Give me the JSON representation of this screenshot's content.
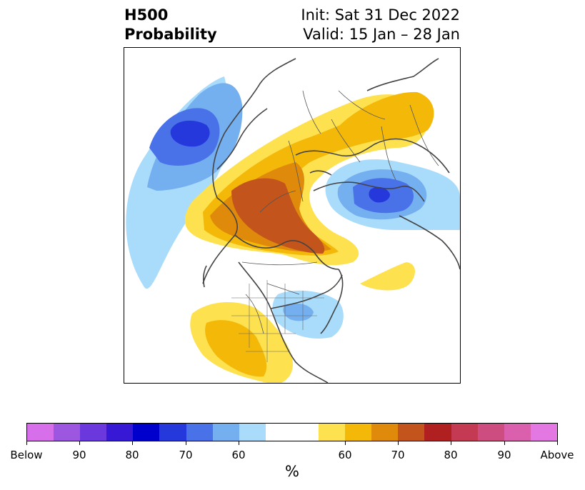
{
  "header": {
    "title_line1": "H500",
    "title_line2": "Probability",
    "init_text": "Init: Sat 31 Dec 2022",
    "valid_text": "Valid: 15 Jan – 28 Jan"
  },
  "map": {
    "icons": [
      "coastline-outline",
      "country-borders",
      "state-borders"
    ],
    "anomaly_regions": [
      {
        "name": "north-pacific-low",
        "category": "below",
        "max_level": 75
      },
      {
        "name": "arctic-canada-high",
        "category": "above",
        "max_level": 75
      },
      {
        "name": "eurasia-arctic-high",
        "category": "above",
        "max_level": 65
      },
      {
        "name": "scandinavia-low",
        "category": "below",
        "max_level": 75
      },
      {
        "name": "eastern-us-low",
        "category": "below",
        "max_level": 65
      },
      {
        "name": "southwest-us-high",
        "category": "above",
        "max_level": 65
      }
    ]
  },
  "colorbar": {
    "unit": "%",
    "colors": [
      "#d66fe9",
      "#9d56e0",
      "#6b38dd",
      "#3718d5",
      "#0000cd",
      "#2538dc",
      "#4a72e8",
      "#74aff0",
      "#a9dbfb",
      "#ffffff",
      "#fee14f",
      "#f4b809",
      "#df8a0b",
      "#c3541c",
      "#b12020",
      "#c43a52",
      "#cd4d80",
      "#da5fad",
      "#e478e2"
    ],
    "tick_labels": [
      "Below",
      "90",
      "80",
      "70",
      "60",
      "60",
      "70",
      "80",
      "90",
      "Above"
    ]
  }
}
